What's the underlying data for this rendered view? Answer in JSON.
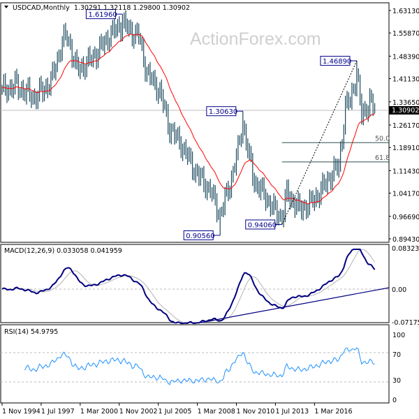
{
  "chart_data": {
    "type": "ohlc",
    "symbol_header": "USDCAD,Monthly",
    "ohlc_current": {
      "open": "1.30291",
      "high": "1.32118",
      "low": "1.29800",
      "close": "1.30902"
    },
    "current_price_label": "1.30902",
    "watermark": "ActionForex.com",
    "bar_count": 230,
    "close_anchors": [
      [
        0,
        1.37
      ],
      [
        8,
        1.39
      ],
      [
        20,
        1.35
      ],
      [
        30,
        1.4
      ],
      [
        37,
        1.53
      ],
      [
        40,
        1.55
      ],
      [
        46,
        1.44
      ],
      [
        52,
        1.46
      ],
      [
        59,
        1.5
      ],
      [
        66,
        1.55
      ],
      [
        74,
        1.59
      ],
      [
        80,
        1.56
      ],
      [
        84,
        1.55
      ],
      [
        89,
        1.43
      ],
      [
        97,
        1.37
      ],
      [
        103,
        1.25
      ],
      [
        110,
        1.2
      ],
      [
        119,
        1.11
      ],
      [
        128,
        1.05
      ],
      [
        134,
        0.97
      ],
      [
        140,
        1.07
      ],
      [
        145,
        1.18
      ],
      [
        148,
        1.27
      ],
      [
        151,
        1.18
      ],
      [
        155,
        1.08
      ],
      [
        162,
        1.03
      ],
      [
        167,
        0.99
      ],
      [
        172,
        0.96
      ],
      [
        175,
        1.04
      ],
      [
        183,
        0.99
      ],
      [
        190,
        1.01
      ],
      [
        196,
        1.05
      ],
      [
        202,
        1.1
      ],
      [
        207,
        1.13
      ],
      [
        211,
        1.32
      ],
      [
        214,
        1.34
      ],
      [
        218,
        1.43
      ],
      [
        221,
        1.29
      ],
      [
        226,
        1.34
      ],
      [
        229,
        1.30902
      ]
    ],
    "price_axis_ticks": [
      "1.63130",
      "1.55870",
      "1.48390",
      "1.41130",
      "1.33650",
      "1.26170",
      "1.18910",
      "1.11430",
      "1.04170",
      "0.96690",
      "0.89430"
    ],
    "time_axis_labels": [
      "1 Nov 1994",
      "1 Jul 1997",
      "1 Mar 2000",
      "1 Nov 2002",
      "1 Jul 2005",
      "1 Mar 2008",
      "1 Nov 2010",
      "1 Jul 2013",
      "1 Mar 2016"
    ],
    "annotations": [
      {
        "text": "1.61960",
        "value": 1.6196,
        "bar": 74,
        "kind": "high"
      },
      {
        "text": "0.90560",
        "value": 0.9056,
        "bar": 134,
        "kind": "low"
      },
      {
        "text": "1.30630",
        "value": 1.3063,
        "bar": 148,
        "kind": "high"
      },
      {
        "text": "0.94060",
        "value": 0.9406,
        "bar": 172,
        "kind": "low"
      },
      {
        "text": "1.46890",
        "value": 1.4689,
        "bar": 218,
        "kind": "high"
      }
    ],
    "fibonacci": {
      "from": 0.9406,
      "to": 1.4689,
      "levels": [
        {
          "ratio": 0.5,
          "label": "50.0"
        },
        {
          "ratio": 0.618,
          "label": "61.8"
        }
      ]
    },
    "macd": {
      "label": "MACD(12,26,9) 0.033058 0.041959",
      "axis_ticks": [
        "0.083235",
        "0.00",
        "-0.071752"
      ],
      "ylim": [
        -0.071752,
        0.083235
      ]
    },
    "rsi": {
      "label": "RSI(14) 54.9795",
      "axis_ticks": [
        "100",
        "70",
        "30",
        "0"
      ],
      "levels": [
        70,
        30
      ]
    },
    "colors": {
      "bars": "#1b4a5e",
      "ma": "#ff0000",
      "macd": "#000080",
      "signal": "#b4b4b4",
      "rsi": "#1e90ff",
      "label_box": "#00008b"
    }
  }
}
